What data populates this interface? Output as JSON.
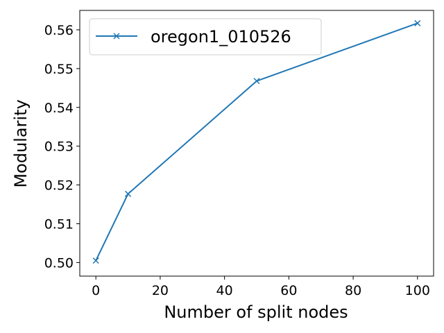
{
  "chart_data": {
    "type": "line",
    "title": "",
    "xlabel": "Number of split nodes",
    "ylabel": "Modularity",
    "xlim": [
      -5,
      105
    ],
    "ylim": [
      0.4965,
      0.565
    ],
    "xticks": [
      "0",
      "20",
      "40",
      "60",
      "80",
      "100"
    ],
    "yticks": [
      "0.50",
      "0.51",
      "0.52",
      "0.53",
      "0.54",
      "0.55",
      "0.56"
    ],
    "grid": false,
    "legend_position": "top-left",
    "series": [
      {
        "name": "oregon1_010526",
        "color": "#1f77b4",
        "marker": "x",
        "x": [
          0,
          10,
          50,
          100
        ],
        "y": [
          0.5005,
          0.5177,
          0.5468,
          0.5617
        ]
      }
    ]
  }
}
